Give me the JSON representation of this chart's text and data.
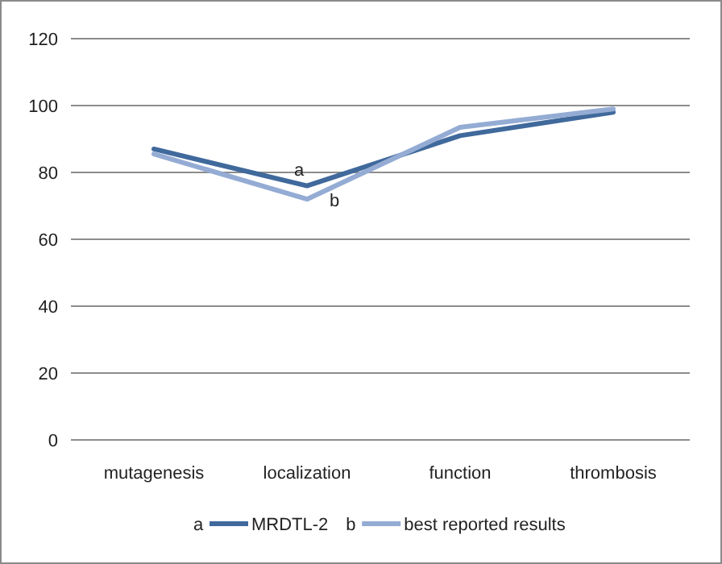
{
  "chart_data": {
    "type": "line",
    "categories": [
      "mutagenesis",
      "localization",
      "function",
      "thrombosis"
    ],
    "series": [
      {
        "name": "MRDTL-2",
        "color": "#40699c",
        "values": [
          87,
          76,
          91,
          98
        ]
      },
      {
        "name": "best reported results",
        "color": "#94acd4",
        "values": [
          85.5,
          72,
          93.5,
          99
        ]
      }
    ],
    "ylim": [
      0,
      120
    ],
    "yticks": [
      0,
      20,
      40,
      60,
      80,
      100,
      120
    ],
    "grid": "y",
    "legend": "bottom",
    "marker": "none",
    "annotations": [
      {
        "text": "a",
        "x": "localization",
        "y": 79
      },
      {
        "text": "b",
        "x": "localization",
        "y": 70
      },
      "a",
      "b"
    ]
  }
}
